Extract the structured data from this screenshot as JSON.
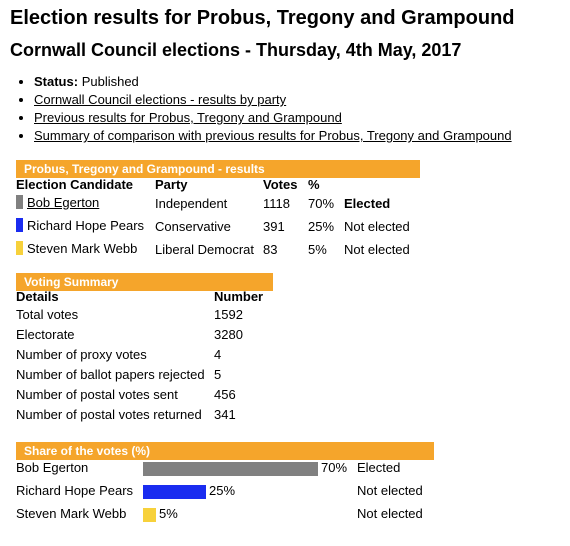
{
  "page": {
    "title": "Election results for Probus, Tregony and Grampound",
    "subtitle": "Cornwall Council elections - Thursday, 4th May, 2017"
  },
  "info": {
    "status_label": "Status:",
    "status_value": "Published",
    "links": [
      "Cornwall Council elections - results by party",
      "Previous results for Probus, Tregony and Grampound",
      "Summary of comparison with previous results for Probus, Tregony and Grampound"
    ]
  },
  "results": {
    "heading": "Probus, Tregony and Grampound - results",
    "columns": [
      "Election Candidate",
      "Party",
      "Votes",
      "%"
    ],
    "rows": [
      {
        "candidate": "Bob Egerton",
        "party": "Independent",
        "votes": "1118",
        "pct": "70%",
        "status": "Elected",
        "color": "#808080"
      },
      {
        "candidate": "Richard Hope Pears",
        "party": "Conservative",
        "votes": "391",
        "pct": "25%",
        "status": "Not elected",
        "color": "#1a2cf0"
      },
      {
        "candidate": "Steven Mark Webb",
        "party": "Liberal Democrat",
        "votes": "83",
        "pct": "5%",
        "status": "Not elected",
        "color": "#f7d13b"
      }
    ]
  },
  "voting_summary": {
    "heading": "Voting Summary",
    "columns": [
      "Details",
      "Number"
    ],
    "rows": [
      {
        "label": "Total votes",
        "value": "1592"
      },
      {
        "label": "Electorate",
        "value": "3280"
      },
      {
        "label": "Number of proxy votes",
        "value": "4"
      },
      {
        "label": "Number of ballot papers rejected",
        "value": "5"
      },
      {
        "label": "Number of postal votes sent",
        "value": "456"
      },
      {
        "label": "Number of postal votes returned",
        "value": "341"
      }
    ]
  },
  "share": {
    "heading": "Share of the votes (%)",
    "rows": [
      {
        "name": "Bob Egerton",
        "pct_label": "70%",
        "share": 70,
        "status": "Elected",
        "color": "#808080"
      },
      {
        "name": "Richard Hope Pears",
        "pct_label": "25%",
        "share": 25,
        "status": "Not elected",
        "color": "#1a2cf0"
      },
      {
        "name": "Steven Mark Webb",
        "pct_label": "5%",
        "share": 5,
        "status": "Not elected",
        "color": "#f7d13b"
      }
    ]
  },
  "colors": {
    "section_bar": "#f5a52b"
  }
}
